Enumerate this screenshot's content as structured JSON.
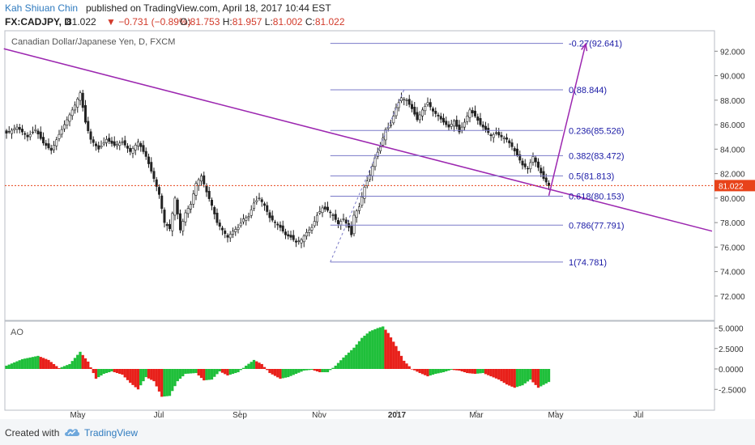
{
  "header": {
    "author": "Kah Shiuan Chin",
    "published_text": "published on TradingView.com, April 18, 2017 10:44 EST",
    "symbol": "FX:CADJPY, D",
    "last": "81.022",
    "change": "▼ −0.731 (−0.89%)",
    "ohlc": [
      {
        "label": "O:",
        "value": "81.753"
      },
      {
        "label": "H:",
        "value": "81.957"
      },
      {
        "label": "L:",
        "value": "81.002"
      },
      {
        "label": "C:",
        "value": "81.022"
      }
    ]
  },
  "footer": {
    "created_with": "Created with",
    "brand": "TradingView",
    "logo_icon": "tradingview-cloud-icon"
  },
  "colors": {
    "up": "#1fbf3a",
    "down": "#e8201a",
    "candle": "#222222",
    "trendline": "#9c27b0",
    "fib": "#7a7ac8",
    "fib_text": "#1a1aa6",
    "last_price": "#e8431a"
  },
  "chart_data": [
    {
      "type": "candlestick",
      "title": "Canadian Dollar/Japanese Yen, D, FXCM",
      "x_ticks": [
        "May",
        "Jul",
        "Sep",
        "Nov",
        "2017",
        "Mar",
        "May",
        "Jul"
      ],
      "y_ticks": [
        "92.000",
        "90.000",
        "88.000",
        "86.000",
        "84.000",
        "82.000",
        "80.000",
        "78.000",
        "76.000",
        "74.000",
        "72.000"
      ],
      "ylim": [
        70.5,
        93.2
      ],
      "last_price": {
        "value": 81.022,
        "label": "81.022"
      },
      "close_path": [
        [
          0,
          85.3
        ],
        [
          4,
          85.8
        ],
        [
          8,
          85.0
        ],
        [
          11,
          85.6
        ],
        [
          14,
          84.5
        ],
        [
          17,
          83.9
        ],
        [
          20,
          85.2
        ],
        [
          23,
          86.4
        ],
        [
          26,
          87.6
        ],
        [
          28,
          88.6
        ],
        [
          30,
          86.2
        ],
        [
          32,
          84.8
        ],
        [
          35,
          84.0
        ],
        [
          38,
          84.8
        ],
        [
          41,
          84.3
        ],
        [
          44,
          84.6
        ],
        [
          47,
          83.8
        ],
        [
          50,
          84.6
        ],
        [
          53,
          83.4
        ],
        [
          56,
          81.6
        ],
        [
          58,
          80.3
        ],
        [
          60,
          78.0
        ],
        [
          62,
          77.5
        ],
        [
          64,
          80.0
        ],
        [
          66,
          77.4
        ],
        [
          68,
          78.8
        ],
        [
          70,
          79.5
        ],
        [
          72,
          81.2
        ],
        [
          74,
          81.8
        ],
        [
          76,
          80.5
        ],
        [
          78,
          79.4
        ],
        [
          80,
          78.0
        ],
        [
          82,
          77.4
        ],
        [
          84,
          76.8
        ],
        [
          86,
          77.3
        ],
        [
          88,
          77.6
        ],
        [
          90,
          78.3
        ],
        [
          92,
          78.5
        ],
        [
          94,
          79.6
        ],
        [
          96,
          80.0
        ],
        [
          98,
          79.4
        ],
        [
          100,
          78.4
        ],
        [
          102,
          78.0
        ],
        [
          104,
          77.6
        ],
        [
          106,
          77.0
        ],
        [
          108,
          76.8
        ],
        [
          110,
          76.4
        ],
        [
          112,
          76.6
        ],
        [
          114,
          77.2
        ],
        [
          116,
          77.6
        ],
        [
          118,
          78.6
        ],
        [
          120,
          79.2
        ],
        [
          122,
          79.0
        ],
        [
          124,
          78.6
        ],
        [
          126,
          77.9
        ],
        [
          128,
          78.3
        ],
        [
          130,
          77.6
        ],
        [
          131,
          77.0
        ],
        [
          132,
          78.6
        ],
        [
          134,
          79.3
        ],
        [
          136,
          80.9
        ],
        [
          138,
          81.9
        ],
        [
          140,
          83.3
        ],
        [
          142,
          84.2
        ],
        [
          144,
          85.6
        ],
        [
          146,
          86.0
        ],
        [
          148,
          87.4
        ],
        [
          150,
          88.2
        ],
        [
          152,
          88.0
        ],
        [
          154,
          87.3
        ],
        [
          156,
          86.4
        ],
        [
          158,
          87.2
        ],
        [
          160,
          87.8
        ],
        [
          162,
          87.1
        ],
        [
          164,
          86.7
        ],
        [
          166,
          86.2
        ],
        [
          168,
          85.8
        ],
        [
          170,
          86.3
        ],
        [
          172,
          85.4
        ],
        [
          174,
          86.2
        ],
        [
          176,
          87.2
        ],
        [
          178,
          86.7
        ],
        [
          180,
          86.0
        ],
        [
          182,
          85.6
        ],
        [
          184,
          85.1
        ],
        [
          186,
          85.3
        ],
        [
          188,
          85.0
        ],
        [
          190,
          84.8
        ],
        [
          192,
          84.2
        ],
        [
          194,
          83.5
        ],
        [
          196,
          82.7
        ],
        [
          198,
          82.4
        ],
        [
          200,
          83.4
        ],
        [
          202,
          82.5
        ],
        [
          204,
          81.6
        ],
        [
          206,
          81.02
        ]
      ],
      "trendline": {
        "from": [
          -1,
          92.2
        ],
        "to": [
          268,
          77.3
        ]
      },
      "projection_arrow": {
        "from": [
          206,
          80.2
        ],
        "to": [
          220,
          92.6
        ]
      },
      "fib_anchor": {
        "from": [
          123,
          74.781
        ],
        "to": [
          151,
          88.844
        ]
      },
      "fib_levels": [
        {
          "ratio": -0.27,
          "value": 92.641,
          "label": "-0.27(92.641)"
        },
        {
          "ratio": 0,
          "value": 88.844,
          "label": "0(88.844)"
        },
        {
          "ratio": 0.236,
          "value": 85.526,
          "label": "0.236(85.526)"
        },
        {
          "ratio": 0.382,
          "value": 83.472,
          "label": "0.382(83.472)"
        },
        {
          "ratio": 0.5,
          "value": 81.813,
          "label": "0.5(81.813)"
        },
        {
          "ratio": 0.618,
          "value": 80.153,
          "label": "0.618(80.153)"
        },
        {
          "ratio": 0.786,
          "value": 77.791,
          "label": "0.786(77.791)"
        },
        {
          "ratio": 1,
          "value": 74.781,
          "label": "1(74.781)"
        }
      ]
    },
    {
      "type": "bar",
      "title": "AO",
      "y_ticks": [
        "5.0000",
        "2.5000",
        "0.0000",
        "-2.5000"
      ],
      "ylim": [
        -3.8,
        5.5
      ],
      "ao_path": [
        [
          0,
          0.4
        ],
        [
          6,
          1.2
        ],
        [
          12,
          1.6
        ],
        [
          16,
          1.1
        ],
        [
          20,
          0.1
        ],
        [
          24,
          0.6
        ],
        [
          28,
          2.1
        ],
        [
          31,
          0.9
        ],
        [
          34,
          -1.2
        ],
        [
          37,
          -0.6
        ],
        [
          40,
          -0.3
        ],
        [
          44,
          -0.7
        ],
        [
          47,
          -1.7
        ],
        [
          50,
          -2.5
        ],
        [
          53,
          -1.0
        ],
        [
          56,
          -1.5
        ],
        [
          59,
          -3.4
        ],
        [
          62,
          -3.3
        ],
        [
          65,
          -1.5
        ],
        [
          68,
          -0.6
        ],
        [
          72,
          -0.5
        ],
        [
          75,
          -1.4
        ],
        [
          78,
          -1.3
        ],
        [
          81,
          -0.3
        ],
        [
          84,
          -0.8
        ],
        [
          88,
          -0.4
        ],
        [
          91,
          0.4
        ],
        [
          94,
          1.1
        ],
        [
          97,
          0.6
        ],
        [
          100,
          -0.5
        ],
        [
          104,
          -1.2
        ],
        [
          107,
          -1.0
        ],
        [
          110,
          -0.6
        ],
        [
          113,
          -0.2
        ],
        [
          116,
          -0.1
        ],
        [
          119,
          -0.4
        ],
        [
          122,
          -0.4
        ],
        [
          125,
          0.4
        ],
        [
          128,
          1.4
        ],
        [
          132,
          2.6
        ],
        [
          135,
          3.8
        ],
        [
          138,
          4.6
        ],
        [
          141,
          5.0
        ],
        [
          143,
          5.2
        ],
        [
          145,
          4.4
        ],
        [
          148,
          2.8
        ],
        [
          151,
          1.0
        ],
        [
          154,
          0.0
        ],
        [
          157,
          -0.5
        ],
        [
          160,
          -0.9
        ],
        [
          163,
          -0.6
        ],
        [
          166,
          -0.4
        ],
        [
          169,
          -0.1
        ],
        [
          172,
          -0.2
        ],
        [
          175,
          -0.5
        ],
        [
          178,
          -0.6
        ],
        [
          181,
          -0.5
        ],
        [
          184,
          -0.9
        ],
        [
          187,
          -1.3
        ],
        [
          190,
          -1.9
        ],
        [
          193,
          -2.3
        ],
        [
          196,
          -2.0
        ],
        [
          199,
          -1.3
        ],
        [
          202,
          -2.3
        ],
        [
          206,
          -1.6
        ]
      ]
    }
  ]
}
